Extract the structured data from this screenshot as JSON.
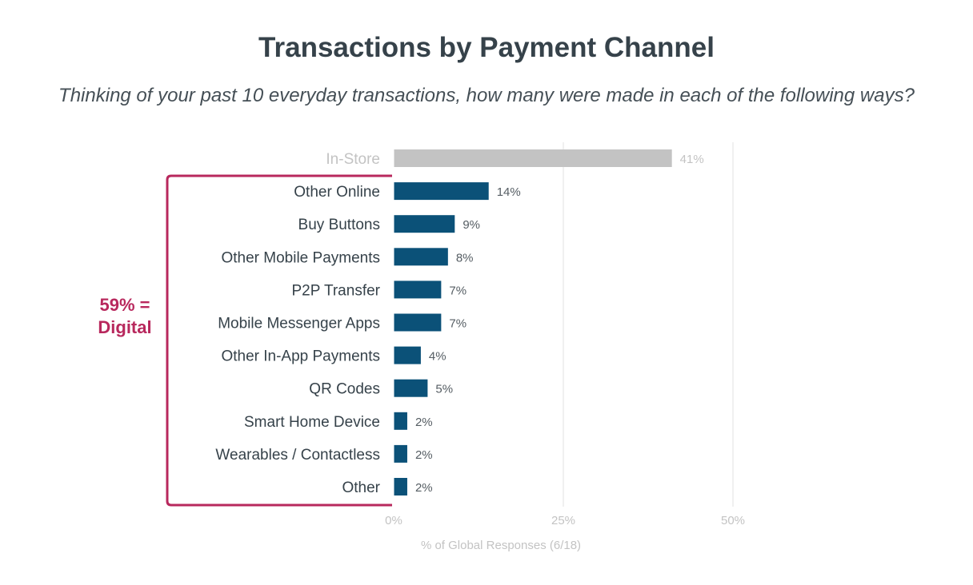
{
  "chart_data": {
    "type": "bar",
    "orientation": "horizontal",
    "title": "Transactions by Payment Channel",
    "subtitle": "Thinking of your past 10 everyday transactions, how many were made in each of the following ways?",
    "xlabel": "% of Global Responses (6/18)",
    "ylabel": "",
    "xlim": [
      0,
      50
    ],
    "xticks": [
      0,
      25,
      50
    ],
    "xtick_labels": [
      "0%",
      "25%",
      "50%"
    ],
    "grid": "vertical",
    "categories": [
      "In-Store",
      "Other Online",
      "Buy Buttons",
      "Other Mobile Payments",
      "P2P Transfer",
      "Mobile Messenger Apps",
      "Other In-App Payments",
      "QR Codes",
      "Smart Home Device",
      "Wearables / Contactless",
      "Other"
    ],
    "values": [
      41,
      14,
      9,
      8,
      7,
      7,
      4,
      5,
      2,
      2,
      2
    ],
    "value_labels": [
      "41%",
      "14%",
      "9%",
      "8%",
      "7%",
      "7%",
      "4%",
      "5%",
      "2%",
      "2%",
      "2%"
    ],
    "bar_colors": [
      "#c3c3c3",
      "#0b5178",
      "#0b5178",
      "#0b5178",
      "#0b5178",
      "#0b5178",
      "#0b5178",
      "#0b5178",
      "#0b5178",
      "#0b5178",
      "#0b5178"
    ],
    "annotation": {
      "lines": [
        "59% =",
        "Digital"
      ],
      "color": "#b8285d"
    }
  },
  "colors": {
    "title": "#36424a",
    "category_label": "#36424a",
    "muted": "#c3c3c3",
    "value_label": "#555d63",
    "grid": "#e2e2e2"
  }
}
